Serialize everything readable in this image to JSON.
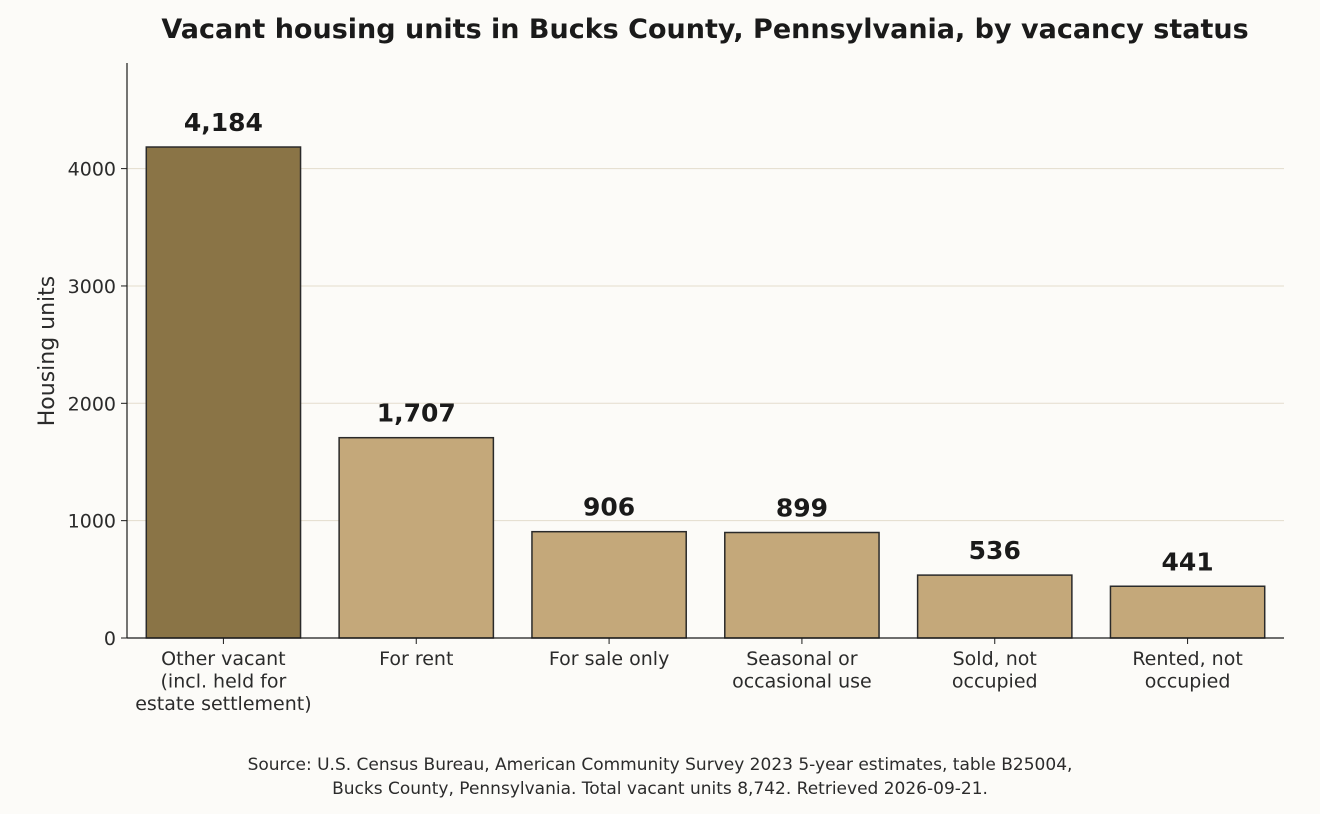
{
  "chart_data": {
    "type": "bar",
    "title": "Vacant housing units in Bucks County, Pennsylvania, by vacancy status",
    "xlabel": "",
    "ylabel": "Housing units",
    "ylim": [
      0,
      4900
    ],
    "yticks": [
      0,
      1000,
      2000,
      3000,
      4000
    ],
    "grid": "horizontal",
    "categories": [
      [
        "Other vacant",
        "(incl. held for",
        "estate settlement)"
      ],
      [
        "For rent"
      ],
      [
        "For sale only"
      ],
      [
        "Seasonal or",
        "occasional use"
      ],
      [
        "Sold, not",
        "occupied"
      ],
      [
        "Rented, not",
        "occupied"
      ]
    ],
    "values": [
      4184,
      1707,
      906,
      899,
      536,
      441
    ],
    "value_labels": [
      "4,184",
      "1,707",
      "906",
      "899",
      "536",
      "441"
    ],
    "colors": {
      "highlight": "#8a7446",
      "default": "#c4a87a",
      "edge": "#2a2a2a",
      "grid": "#e3dccd"
    },
    "highlight_index": 0
  },
  "source": {
    "line1": "Source: U.S. Census Bureau, American Community Survey 2023 5-year estimates, table B25004,",
    "line2": "Bucks County, Pennsylvania. Total vacant units 8,742. Retrieved 2026-09-21."
  }
}
